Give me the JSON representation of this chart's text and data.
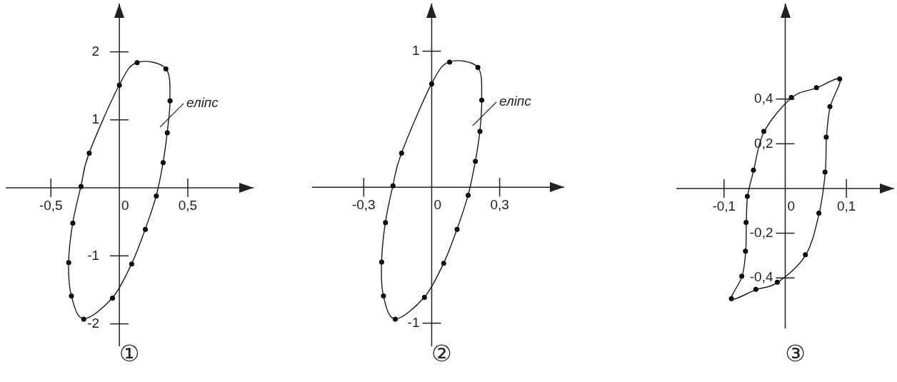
{
  "chart_data": [
    {
      "type": "scatter",
      "title": "①",
      "xlim": [
        -0.83,
        0.98
      ],
      "ylim": [
        -2.33,
        2.71
      ],
      "xticks": [
        {
          "value": -0.5,
          "label": "-0,5"
        },
        {
          "value": 0,
          "label": "0"
        },
        {
          "value": 0.5,
          "label": "0,5"
        }
      ],
      "yticks": [
        -2,
        -1,
        1,
        2
      ],
      "series": [
        {
          "color": "#000000",
          "marker": "circle",
          "x": [
            0,
            0.13,
            0.34,
            0.37,
            0.35,
            0.32,
            0.27,
            0.19,
            0.09,
            -0.05,
            -0.26,
            -0.35,
            -0.37,
            -0.34,
            -0.28,
            -0.22
          ],
          "values": [
            1.51,
            1.84,
            1.75,
            1.28,
            0.81,
            0.37,
            -0.12,
            -0.61,
            -1.12,
            -1.62,
            -1.93,
            -1.59,
            -1.1,
            -0.52,
            0.02,
            0.51
          ]
        }
      ],
      "annotations": [
        "еліпс"
      ]
    },
    {
      "type": "scatter",
      "title": "②",
      "xlim": [
        -0.528,
        0.585
      ],
      "ylim": [
        -1.17,
        1.35
      ],
      "xticks": [
        {
          "value": -0.3,
          "label": "-0,3"
        },
        {
          "value": 0,
          "label": "0"
        },
        {
          "value": 0.3,
          "label": "0,3"
        }
      ],
      "yticks": [
        -1,
        1
      ],
      "series": [
        {
          "color": "#000000",
          "marker": "circle",
          "x": [
            0,
            0.079,
            0.204,
            0.221,
            0.213,
            0.193,
            0.161,
            0.112,
            0.053,
            -0.032,
            -0.161,
            -0.213,
            -0.221,
            -0.204,
            -0.171,
            -0.133
          ],
          "values": [
            0.76,
            0.92,
            0.88,
            0.64,
            0.41,
            0.19,
            -0.06,
            -0.31,
            -0.56,
            -0.81,
            -0.97,
            -0.8,
            -0.55,
            -0.26,
            0.01,
            0.25
          ]
        }
      ],
      "annotations": [
        "еліпс"
      ]
    },
    {
      "type": "scatter",
      "title": "③",
      "xlim": [
        -0.178,
        0.178
      ],
      "ylim": [
        -0.626,
        0.827
      ],
      "xticks": [
        {
          "value": -0.1,
          "label": "-0,1"
        },
        {
          "value": 0,
          "label": "0"
        },
        {
          "value": 0.1,
          "label": "0,1"
        }
      ],
      "yticks": [
        {
          "value": -0.4,
          "label": "-0,4"
        },
        {
          "value": -0.2,
          "label": "-0,2"
        },
        {
          "value": 0.2,
          "label": "0,2"
        },
        {
          "value": 0.4,
          "label": "0,4"
        }
      ],
      "series": [
        {
          "color": "#000000",
          "marker": "circle",
          "x": [
            0.089,
            0.051,
            0.01,
            -0.035,
            -0.052,
            -0.062,
            -0.064,
            -0.065,
            -0.071,
            -0.088,
            -0.048,
            -0.013,
            0.033,
            0.055,
            0.065,
            0.067,
            0.073
          ],
          "values": [
            0.49,
            0.451,
            0.407,
            0.255,
            0.082,
            -0.035,
            -0.152,
            -0.28,
            -0.392,
            -0.493,
            -0.451,
            -0.419,
            -0.296,
            -0.11,
            0.073,
            0.23,
            0.366
          ]
        }
      ]
    }
  ]
}
